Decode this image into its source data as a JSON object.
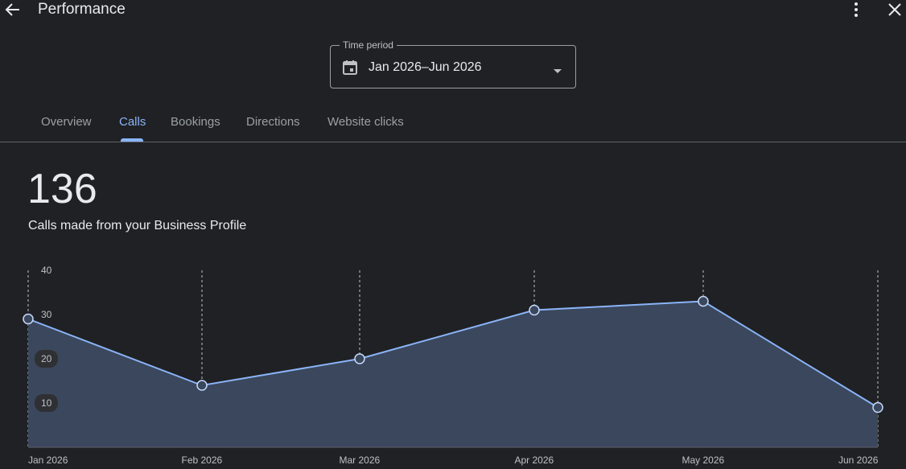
{
  "header": {
    "title": "Performance",
    "back_icon": "arrow-back-icon",
    "more_icon": "more-vert-icon",
    "close_icon": "close-icon"
  },
  "period": {
    "legend": "Time period",
    "value": "Jan 2026–Jun 2026",
    "calendar_icon": "calendar-icon",
    "caret_icon": "dropdown-arrow-icon"
  },
  "tabs": [
    {
      "label": "Overview",
      "active": false
    },
    {
      "label": "Calls",
      "active": true
    },
    {
      "label": "Bookings",
      "active": false
    },
    {
      "label": "Directions",
      "active": false
    },
    {
      "label": "Website clicks",
      "active": false
    }
  ],
  "metric": {
    "value": "136",
    "label": "Calls made from your Business Profile"
  },
  "colors": {
    "accent": "#8ab4f8",
    "background": "#202124",
    "area_fill": "#3b475c"
  },
  "chart_data": {
    "type": "area",
    "categories": [
      "Jan 2026",
      "Feb 2026",
      "Mar 2026",
      "Apr 2026",
      "May 2026",
      "Jun 2026"
    ],
    "values": [
      29,
      14,
      20,
      31,
      33,
      9
    ],
    "yticks": [
      10,
      20,
      30,
      40
    ],
    "ylim": [
      0,
      40
    ],
    "grid": "vertical-dashed"
  }
}
